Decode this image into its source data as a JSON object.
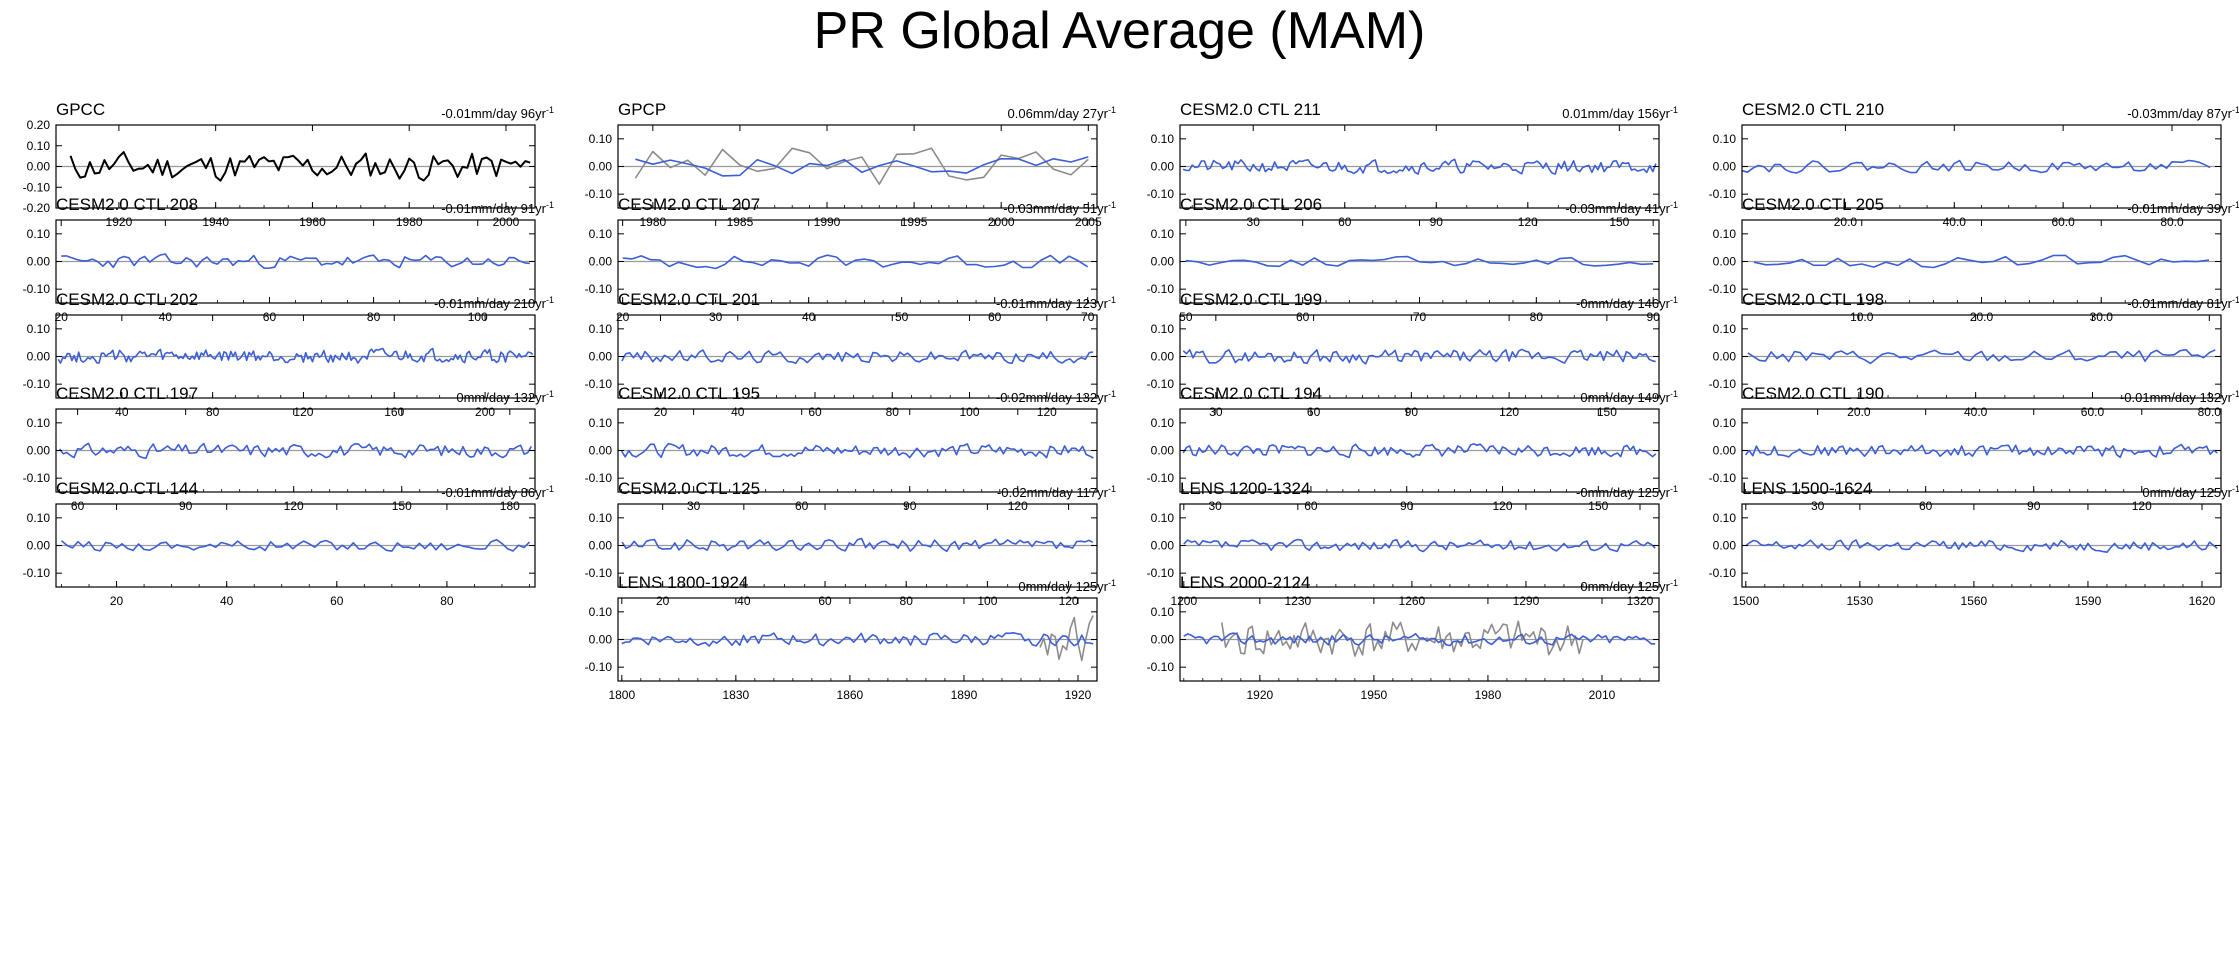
{
  "title": "PR Global Average (MAM)",
  "colors": {
    "obs": "#000000",
    "model": "#3d5fd6",
    "overlay": "#8c8c8c",
    "zero": "#9a9a9a",
    "frame": "#000000"
  },
  "trend_unit": "mm/day",
  "trend_suffix": "yr",
  "trend_exponent": "-1",
  "chart_data": [
    {
      "type": "line",
      "title": "GPCC",
      "trend": "-0.01",
      "span": "96",
      "xlim": [
        1907,
        2006
      ],
      "ylim": [
        -0.2,
        0.2
      ],
      "yticks": [
        "0.20",
        "0.10",
        "0.00",
        "-0.10",
        "-0.20"
      ],
      "xticks": [
        "1920",
        "1940",
        "1960",
        "1980",
        "2000"
      ],
      "series": [
        {
          "style": "obs",
          "n": 96,
          "amp": 0.085,
          "seed": 11,
          "start": 1910
        }
      ]
    },
    {
      "type": "line",
      "title": "GPCP",
      "trend": "0.06",
      "span": "27",
      "xlim": [
        1978,
        2005.5
      ],
      "ylim": [
        -0.15,
        0.15
      ],
      "yticks": [
        "0.10",
        "0.00",
        "-0.10"
      ],
      "xticks": [
        "1980",
        "1985",
        "1990",
        "1995",
        "2000",
        "2005"
      ],
      "series": [
        {
          "style": "overlay",
          "n": 27,
          "amp": 0.1,
          "seed": 3,
          "start": 1979
        },
        {
          "style": "model",
          "n": 27,
          "amp": 0.045,
          "seed": 5,
          "start": 1979
        }
      ]
    },
    {
      "type": "line",
      "title": "CESM2.0 CTL 211",
      "trend": "0.01",
      "span": "156",
      "xlim": [
        6,
        163
      ],
      "ylim": [
        -0.15,
        0.15
      ],
      "yticks": [
        "0.10",
        "0.00",
        "-0.10"
      ],
      "xticks": [
        "30",
        "60",
        "90",
        "120",
        "150"
      ],
      "series": [
        {
          "style": "model",
          "n": 156,
          "amp": 0.03,
          "seed": 21,
          "start": 7
        }
      ]
    },
    {
      "type": "line",
      "title": "CESM2.0 CTL 210",
      "trend": "-0.03",
      "span": "87",
      "xlim": [
        1,
        89
      ],
      "ylim": [
        -0.15,
        0.15
      ],
      "yticks": [
        "0.10",
        "0.00",
        "-0.10"
      ],
      "xticks": [
        "20.0",
        "40.0",
        "60.0",
        "80.0"
      ],
      "series": [
        {
          "style": "model",
          "n": 87,
          "amp": 0.025,
          "seed": 22,
          "start": 1
        }
      ]
    },
    {
      "type": "line",
      "title": "CESM2.0 CTL 208",
      "trend": "-0.01",
      "span": "91",
      "xlim": [
        19,
        111
      ],
      "ylim": [
        -0.15,
        0.15
      ],
      "yticks": [
        "0.10",
        "0.00",
        "-0.10"
      ],
      "xticks": [
        "20",
        "40",
        "60",
        "80",
        "100"
      ],
      "series": [
        {
          "style": "model",
          "n": 91,
          "amp": 0.03,
          "seed": 23,
          "start": 20
        }
      ]
    },
    {
      "type": "line",
      "title": "CESM2.0 CTL 207",
      "trend": "-0.03",
      "span": "51",
      "xlim": [
        19.5,
        71
      ],
      "ylim": [
        -0.15,
        0.15
      ],
      "yticks": [
        "0.10",
        "0.00",
        "-0.10"
      ],
      "xticks": [
        "20",
        "30",
        "40",
        "50",
        "60",
        "70"
      ],
      "series": [
        {
          "style": "model",
          "n": 51,
          "amp": 0.03,
          "seed": 24,
          "start": 20
        }
      ]
    },
    {
      "type": "line",
      "title": "CESM2.0 CTL 206",
      "trend": "-0.03",
      "span": "41",
      "xlim": [
        49.5,
        90.5
      ],
      "ylim": [
        -0.15,
        0.15
      ],
      "yticks": [
        "0.10",
        "0.00",
        "-0.10"
      ],
      "xticks": [
        "50",
        "60",
        "70",
        "80",
        "90"
      ],
      "series": [
        {
          "style": "model",
          "n": 41,
          "amp": 0.022,
          "seed": 25,
          "start": 50
        }
      ]
    },
    {
      "type": "line",
      "title": "CESM2.0 CTL 205",
      "trend": "-0.01",
      "span": "39",
      "xlim": [
        0,
        40
      ],
      "ylim": [
        -0.15,
        0.15
      ],
      "yticks": [
        "0.10",
        "0.00",
        "-0.10"
      ],
      "xticks": [
        "10.0",
        "20.0",
        "30.0"
      ],
      "series": [
        {
          "style": "model",
          "n": 39,
          "amp": 0.028,
          "seed": 26,
          "start": 1
        }
      ]
    },
    {
      "type": "line",
      "title": "CESM2.0 CTL 202",
      "trend": "-0.01",
      "span": "210",
      "xlim": [
        11,
        222
      ],
      "ylim": [
        -0.15,
        0.15
      ],
      "yticks": [
        "0.10",
        "0.00",
        "-0.10"
      ],
      "xticks": [
        "40",
        "80",
        "120",
        "160",
        "200"
      ],
      "series": [
        {
          "style": "model",
          "n": 210,
          "amp": 0.03,
          "seed": 27,
          "start": 12
        }
      ]
    },
    {
      "type": "line",
      "title": "CESM2.0 CTL 201",
      "trend": "-0.01",
      "span": "123",
      "xlim": [
        9,
        133
      ],
      "ylim": [
        -0.15,
        0.15
      ],
      "yticks": [
        "0.10",
        "0.00",
        "-0.10"
      ],
      "xticks": [
        "20",
        "40",
        "60",
        "80",
        "100",
        "120"
      ],
      "series": [
        {
          "style": "model",
          "n": 123,
          "amp": 0.028,
          "seed": 28,
          "start": 10
        }
      ]
    },
    {
      "type": "line",
      "title": "CESM2.0 CTL 199",
      "trend": "-0",
      "span": "146",
      "xlim": [
        19,
        166
      ],
      "ylim": [
        -0.15,
        0.15
      ],
      "yticks": [
        "0.10",
        "0.00",
        "-0.10"
      ],
      "xticks": [
        "30",
        "60",
        "90",
        "120",
        "150"
      ],
      "series": [
        {
          "style": "model",
          "n": 146,
          "amp": 0.03,
          "seed": 29,
          "start": 20
        }
      ]
    },
    {
      "type": "line",
      "title": "CESM2.0 CTL 198",
      "trend": "-0.01",
      "span": "81",
      "xlim": [
        0,
        82
      ],
      "ylim": [
        -0.15,
        0.15
      ],
      "yticks": [
        "0.10",
        "0.00",
        "-0.10"
      ],
      "xticks": [
        "20.0",
        "40.0",
        "60.0",
        "80.0"
      ],
      "series": [
        {
          "style": "model",
          "n": 81,
          "amp": 0.03,
          "seed": 30,
          "start": 1
        }
      ]
    },
    {
      "type": "line",
      "title": "CESM2.0 CTL 197",
      "trend": "0",
      "span": "132",
      "xlim": [
        54,
        187
      ],
      "ylim": [
        -0.15,
        0.15
      ],
      "yticks": [
        "0.10",
        "0.00",
        "-0.10"
      ],
      "xticks": [
        "60",
        "90",
        "120",
        "150",
        "180"
      ],
      "series": [
        {
          "style": "model",
          "n": 132,
          "amp": 0.03,
          "seed": 31,
          "start": 55
        }
      ]
    },
    {
      "type": "line",
      "title": "CESM2.0 CTL 195",
      "trend": "-0.02",
      "span": "132",
      "xlim": [
        9,
        142
      ],
      "ylim": [
        -0.15,
        0.15
      ],
      "yticks": [
        "0.10",
        "0.00",
        "-0.10"
      ],
      "xticks": [
        "30",
        "60",
        "90",
        "120"
      ],
      "series": [
        {
          "style": "model",
          "n": 132,
          "amp": 0.03,
          "seed": 32,
          "start": 10
        }
      ]
    },
    {
      "type": "line",
      "title": "CESM2.0 CTL 194",
      "trend": "0",
      "span": "149",
      "xlim": [
        19,
        169
      ],
      "ylim": [
        -0.15,
        0.15
      ],
      "yticks": [
        "0.10",
        "0.00",
        "-0.10"
      ],
      "xticks": [
        "30",
        "60",
        "90",
        "120",
        "150"
      ],
      "series": [
        {
          "style": "model",
          "n": 149,
          "amp": 0.028,
          "seed": 33,
          "start": 20
        }
      ]
    },
    {
      "type": "line",
      "title": "CESM2.0 CTL 190",
      "trend": "-0.01",
      "span": "132",
      "xlim": [
        9,
        142
      ],
      "ylim": [
        -0.15,
        0.15
      ],
      "yticks": [
        "0.10",
        "0.00",
        "-0.10"
      ],
      "xticks": [
        "30",
        "60",
        "90",
        "120"
      ],
      "series": [
        {
          "style": "model",
          "n": 132,
          "amp": 0.028,
          "seed": 34,
          "start": 10
        }
      ]
    },
    {
      "type": "line",
      "title": "CESM2.0 CTL 144",
      "trend": "-0.01",
      "span": "86",
      "xlim": [
        9,
        96
      ],
      "ylim": [
        -0.15,
        0.15
      ],
      "yticks": [
        "0.10",
        "0.00",
        "-0.10"
      ],
      "xticks": [
        "20",
        "40",
        "60",
        "80"
      ],
      "series": [
        {
          "style": "model",
          "n": 86,
          "amp": 0.025,
          "seed": 35,
          "start": 10
        }
      ]
    },
    {
      "type": "line",
      "title": "CESM2.0 CTL 125",
      "trend": "-0.02",
      "span": "117",
      "xlim": [
        9,
        127
      ],
      "ylim": [
        -0.15,
        0.15
      ],
      "yticks": [
        "0.10",
        "0.00",
        "-0.10"
      ],
      "xticks": [
        "20",
        "40",
        "60",
        "80",
        "100",
        "120"
      ],
      "series": [
        {
          "style": "model",
          "n": 117,
          "amp": 0.028,
          "seed": 36,
          "start": 10
        }
      ]
    },
    {
      "type": "line",
      "title": "LENS 1200-1324",
      "trend": "-0",
      "span": "125",
      "xlim": [
        1199,
        1325
      ],
      "ylim": [
        -0.15,
        0.15
      ],
      "yticks": [
        "0.10",
        "0.00",
        "-0.10"
      ],
      "xticks": [
        "1200",
        "1230",
        "1260",
        "1290",
        "1320"
      ],
      "series": [
        {
          "style": "model",
          "n": 125,
          "amp": 0.025,
          "seed": 37,
          "start": 1200
        }
      ]
    },
    {
      "type": "line",
      "title": "LENS 1500-1624",
      "trend": "0",
      "span": "125",
      "xlim": [
        1499,
        1625
      ],
      "ylim": [
        -0.15,
        0.15
      ],
      "yticks": [
        "0.10",
        "0.00",
        "-0.10"
      ],
      "xticks": [
        "1500",
        "1530",
        "1560",
        "1590",
        "1620"
      ],
      "series": [
        {
          "style": "model",
          "n": 125,
          "amp": 0.025,
          "seed": 38,
          "start": 1500
        }
      ]
    },
    {
      "type": "line",
      "title": "LENS 1800-1924",
      "trend": "0",
      "span": "125",
      "xlim": [
        1799,
        1925
      ],
      "ylim": [
        -0.15,
        0.15
      ],
      "yticks": [
        "0.10",
        "0.00",
        "-0.10"
      ],
      "xticks": [
        "1800",
        "1830",
        "1860",
        "1890",
        "1920"
      ],
      "series": [
        {
          "style": "overlay",
          "n": 15,
          "amp": 0.1,
          "seed": 39,
          "start": 1910
        },
        {
          "style": "model",
          "n": 125,
          "amp": 0.028,
          "seed": 40,
          "start": 1800
        }
      ]
    },
    {
      "type": "line",
      "title": "LENS 2000-2124",
      "trend": "0",
      "span": "125",
      "xlim": [
        1899,
        2025
      ],
      "ylim": [
        -0.15,
        0.15
      ],
      "yticks": [
        "0.10",
        "0.00",
        "-0.10"
      ],
      "xticks": [
        "1920",
        "1950",
        "1980",
        "2010"
      ],
      "series": [
        {
          "style": "overlay",
          "n": 96,
          "amp": 0.085,
          "seed": 41,
          "start": 1910
        },
        {
          "style": "model",
          "n": 125,
          "amp": 0.025,
          "seed": 42,
          "start": 1900
        }
      ]
    }
  ]
}
